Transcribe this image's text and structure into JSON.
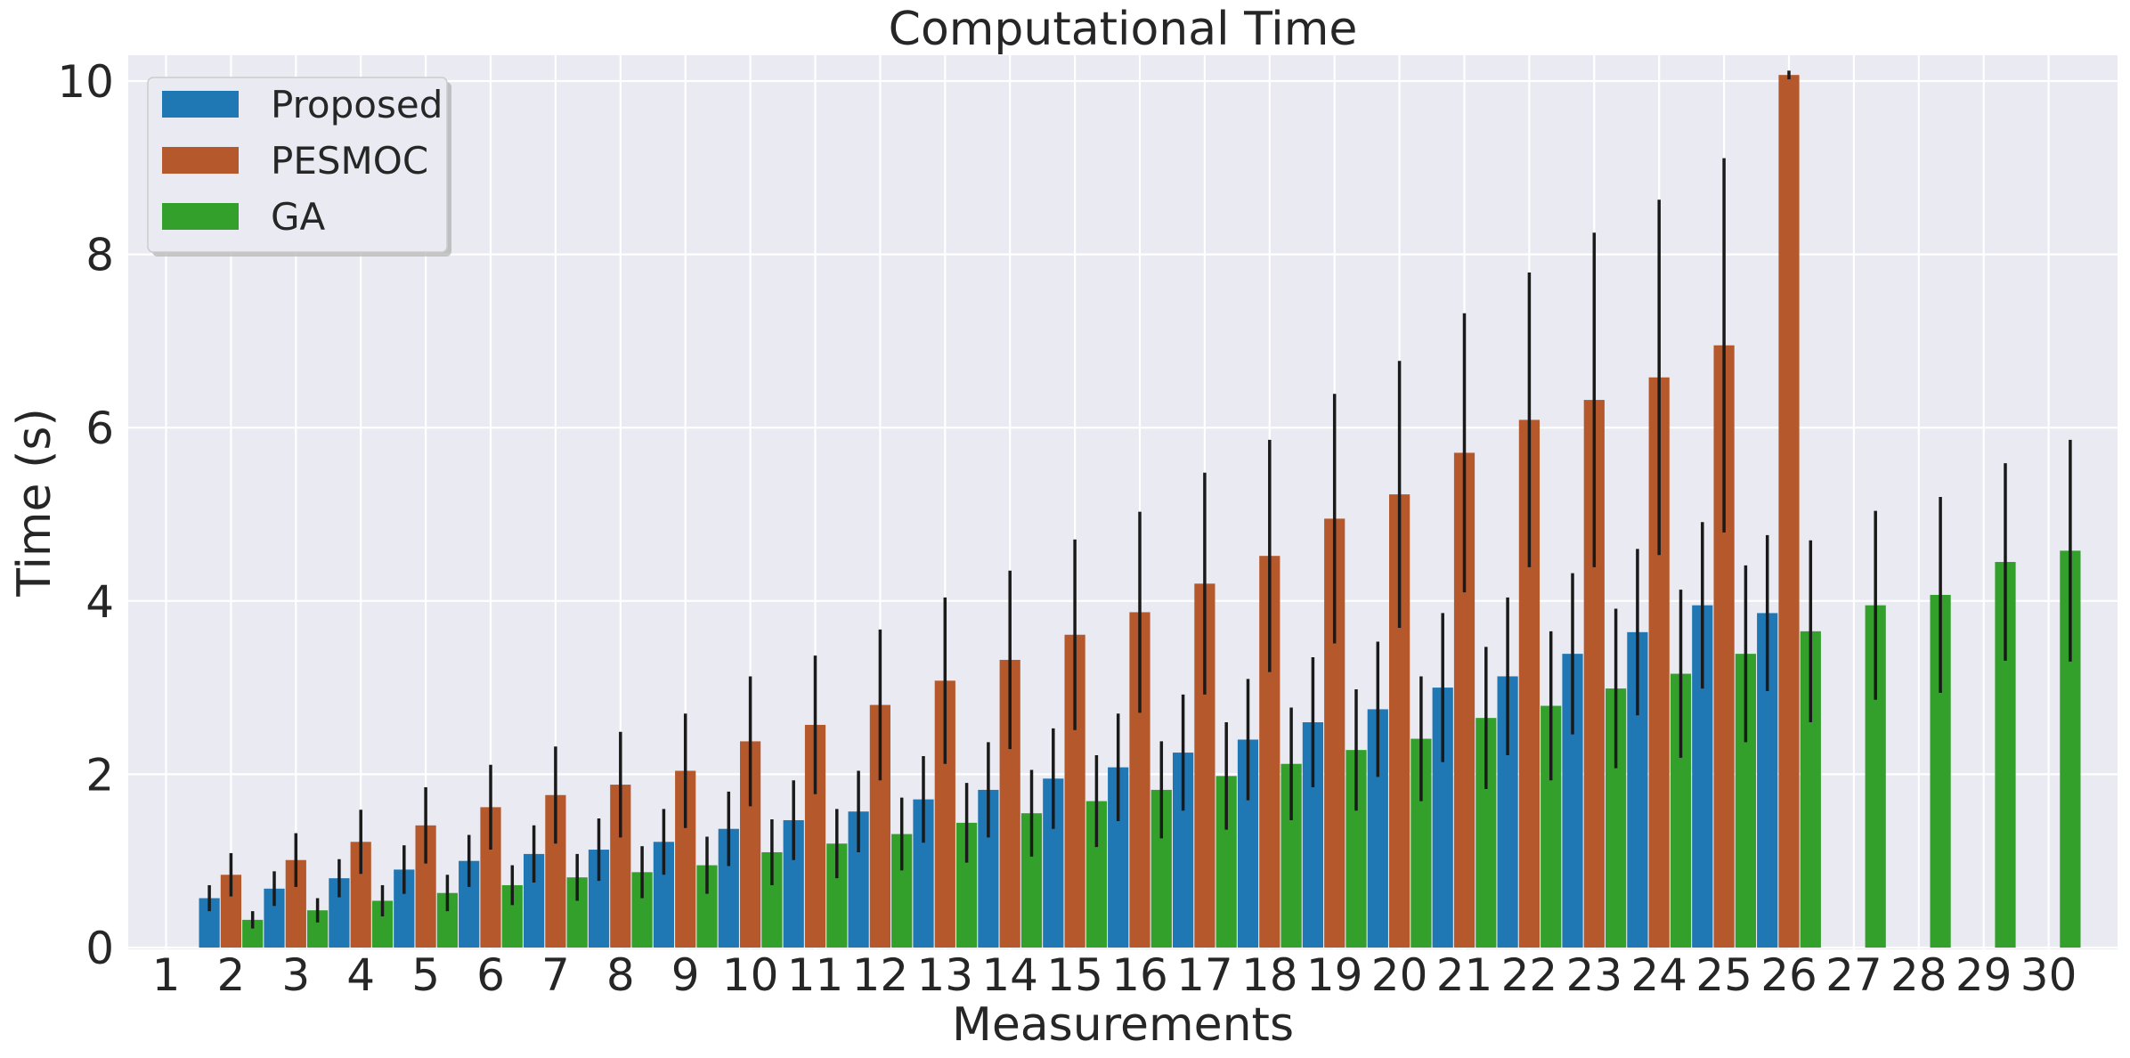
{
  "chart_data": {
    "type": "bar",
    "title": "Computational Time",
    "xlabel": "Measurements",
    "ylabel": "Time (s)",
    "ylim": [
      0,
      10.3
    ],
    "yticks": [
      0,
      2,
      4,
      6,
      8,
      10
    ],
    "grid": true,
    "legend_position": "top-left",
    "categories": [
      "1",
      "2",
      "3",
      "4",
      "5",
      "6",
      "7",
      "8",
      "9",
      "10",
      "11",
      "12",
      "13",
      "14",
      "15",
      "16",
      "17",
      "18",
      "19",
      "20",
      "21",
      "22",
      "23",
      "24",
      "25",
      "26",
      "27",
      "28",
      "29",
      "30"
    ],
    "series": [
      {
        "name": "Proposed",
        "color": "#1f77b4",
        "values": [
          null,
          0.57,
          0.68,
          0.8,
          0.9,
          1.0,
          1.08,
          1.13,
          1.22,
          1.37,
          1.47,
          1.57,
          1.71,
          1.82,
          1.95,
          2.08,
          2.25,
          2.4,
          2.6,
          2.75,
          3.0,
          3.13,
          3.39,
          3.64,
          3.95,
          3.86,
          null,
          null,
          null,
          null
        ],
        "errors": [
          null,
          0.15,
          0.2,
          0.22,
          0.28,
          0.3,
          0.33,
          0.36,
          0.38,
          0.43,
          0.46,
          0.47,
          0.5,
          0.55,
          0.58,
          0.62,
          0.67,
          0.7,
          0.75,
          0.78,
          0.86,
          0.91,
          0.93,
          0.96,
          0.96,
          0.9,
          null,
          null,
          null,
          null
        ]
      },
      {
        "name": "PESMOC",
        "color": "#b5592c",
        "values": [
          null,
          0.84,
          1.01,
          1.22,
          1.41,
          1.62,
          1.76,
          1.88,
          2.04,
          2.38,
          2.57,
          2.8,
          3.08,
          3.32,
          3.61,
          3.87,
          4.2,
          4.52,
          4.95,
          5.23,
          5.71,
          6.09,
          6.32,
          6.58,
          6.95,
          10.07,
          null,
          null,
          null,
          null
        ],
        "errors": [
          null,
          0.25,
          0.31,
          0.37,
          0.44,
          0.49,
          0.56,
          0.61,
          0.66,
          0.75,
          0.8,
          0.87,
          0.96,
          1.03,
          1.1,
          1.16,
          1.28,
          1.34,
          1.44,
          1.54,
          1.61,
          1.7,
          1.93,
          2.05,
          2.16,
          0.05,
          null,
          null,
          null,
          null
        ]
      },
      {
        "name": "GA",
        "color": "#33a02c",
        "values": [
          null,
          0.32,
          0.43,
          0.54,
          0.63,
          0.72,
          0.81,
          0.87,
          0.95,
          1.1,
          1.2,
          1.31,
          1.44,
          1.55,
          1.69,
          1.82,
          1.98,
          2.12,
          2.28,
          2.41,
          2.65,
          2.79,
          2.99,
          3.16,
          3.39,
          3.65,
          3.95,
          4.07,
          4.45,
          4.58
        ],
        "errors": [
          null,
          0.1,
          0.14,
          0.18,
          0.21,
          0.23,
          0.27,
          0.3,
          0.33,
          0.38,
          0.4,
          0.42,
          0.46,
          0.5,
          0.53,
          0.56,
          0.62,
          0.65,
          0.7,
          0.72,
          0.82,
          0.86,
          0.92,
          0.97,
          1.02,
          1.05,
          1.09,
          1.13,
          1.14,
          1.28
        ]
      }
    ]
  }
}
